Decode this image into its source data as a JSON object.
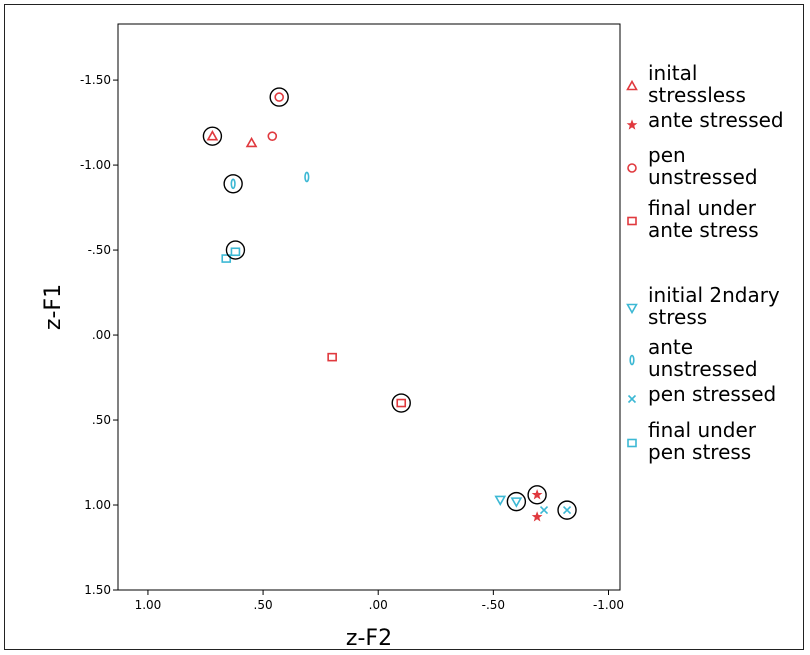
{
  "chart_data": {
    "type": "scatter",
    "xlabel": "z-F2",
    "ylabel": "z-F1",
    "x_reversed": true,
    "y_reversed": true,
    "xlim": [
      1.13,
      -1.05
    ],
    "ylim": [
      -1.83,
      1.5
    ],
    "x_ticks": [
      {
        "value": 1.0,
        "label": "1.00"
      },
      {
        "value": 0.5,
        "label": ".50"
      },
      {
        "value": 0.0,
        "label": ".00"
      },
      {
        "value": -0.5,
        "label": "-.50"
      },
      {
        "value": -1.0,
        "label": "-1.00"
      }
    ],
    "y_ticks": [
      {
        "value": -1.5,
        "label": "-1.50"
      },
      {
        "value": -1.0,
        "label": "-1.00"
      },
      {
        "value": -0.5,
        "label": "-.50"
      },
      {
        "value": 0.0,
        "label": ".00"
      },
      {
        "value": 0.5,
        "label": ".50"
      },
      {
        "value": 1.0,
        "label": "1.00"
      },
      {
        "value": 1.5,
        "label": "1.50"
      }
    ],
    "grid": false,
    "legend_position": "right",
    "series": [
      {
        "name": "inital stressless",
        "marker": "triangle-up",
        "color": "#e0393e",
        "points": [
          {
            "x": 0.72,
            "y": -1.17
          },
          {
            "x": 0.55,
            "y": -1.13
          }
        ]
      },
      {
        "name": "ante stressed",
        "marker": "star",
        "color": "#e0393e",
        "points": [
          {
            "x": -0.69,
            "y": 0.94
          },
          {
            "x": -0.69,
            "y": 1.07
          }
        ]
      },
      {
        "name": "pen unstressed",
        "marker": "circle",
        "color": "#e0393e",
        "points": [
          {
            "x": 0.43,
            "y": -1.4
          },
          {
            "x": 0.46,
            "y": -1.17
          }
        ]
      },
      {
        "name": "final under ante stress",
        "marker": "square",
        "color": "#e0393e",
        "points": [
          {
            "x": 0.2,
            "y": 0.13
          },
          {
            "x": -0.1,
            "y": 0.4
          }
        ]
      },
      {
        "name": "initial 2ndary stress",
        "marker": "triangle-down",
        "color": "#3cb8d4",
        "points": [
          {
            "x": -0.53,
            "y": 0.97
          },
          {
            "x": -0.6,
            "y": 0.98
          }
        ]
      },
      {
        "name": "ante unstressed",
        "marker": "diamond-thin",
        "color": "#3cb8d4",
        "points": [
          {
            "x": 0.63,
            "y": -0.89
          },
          {
            "x": 0.31,
            "y": -0.93
          }
        ]
      },
      {
        "name": "pen stressed",
        "marker": "x",
        "color": "#3cb8d4",
        "points": [
          {
            "x": -0.72,
            "y": 1.03
          },
          {
            "x": -0.82,
            "y": 1.03
          }
        ]
      },
      {
        "name": "final under pen stress",
        "marker": "square",
        "color": "#3cb8d4",
        "points": [
          {
            "x": 0.66,
            "y": -0.45
          },
          {
            "x": 0.62,
            "y": -0.49
          }
        ]
      }
    ],
    "highlight_circles": [
      {
        "x": 0.72,
        "y": -1.17
      },
      {
        "x": 0.43,
        "y": -1.4
      },
      {
        "x": 0.63,
        "y": -0.89
      },
      {
        "x": 0.62,
        "y": -0.5
      },
      {
        "x": -0.1,
        "y": 0.4
      },
      {
        "x": -0.6,
        "y": 0.98
      },
      {
        "x": -0.69,
        "y": 0.94
      },
      {
        "x": -0.82,
        "y": 1.03
      }
    ]
  }
}
